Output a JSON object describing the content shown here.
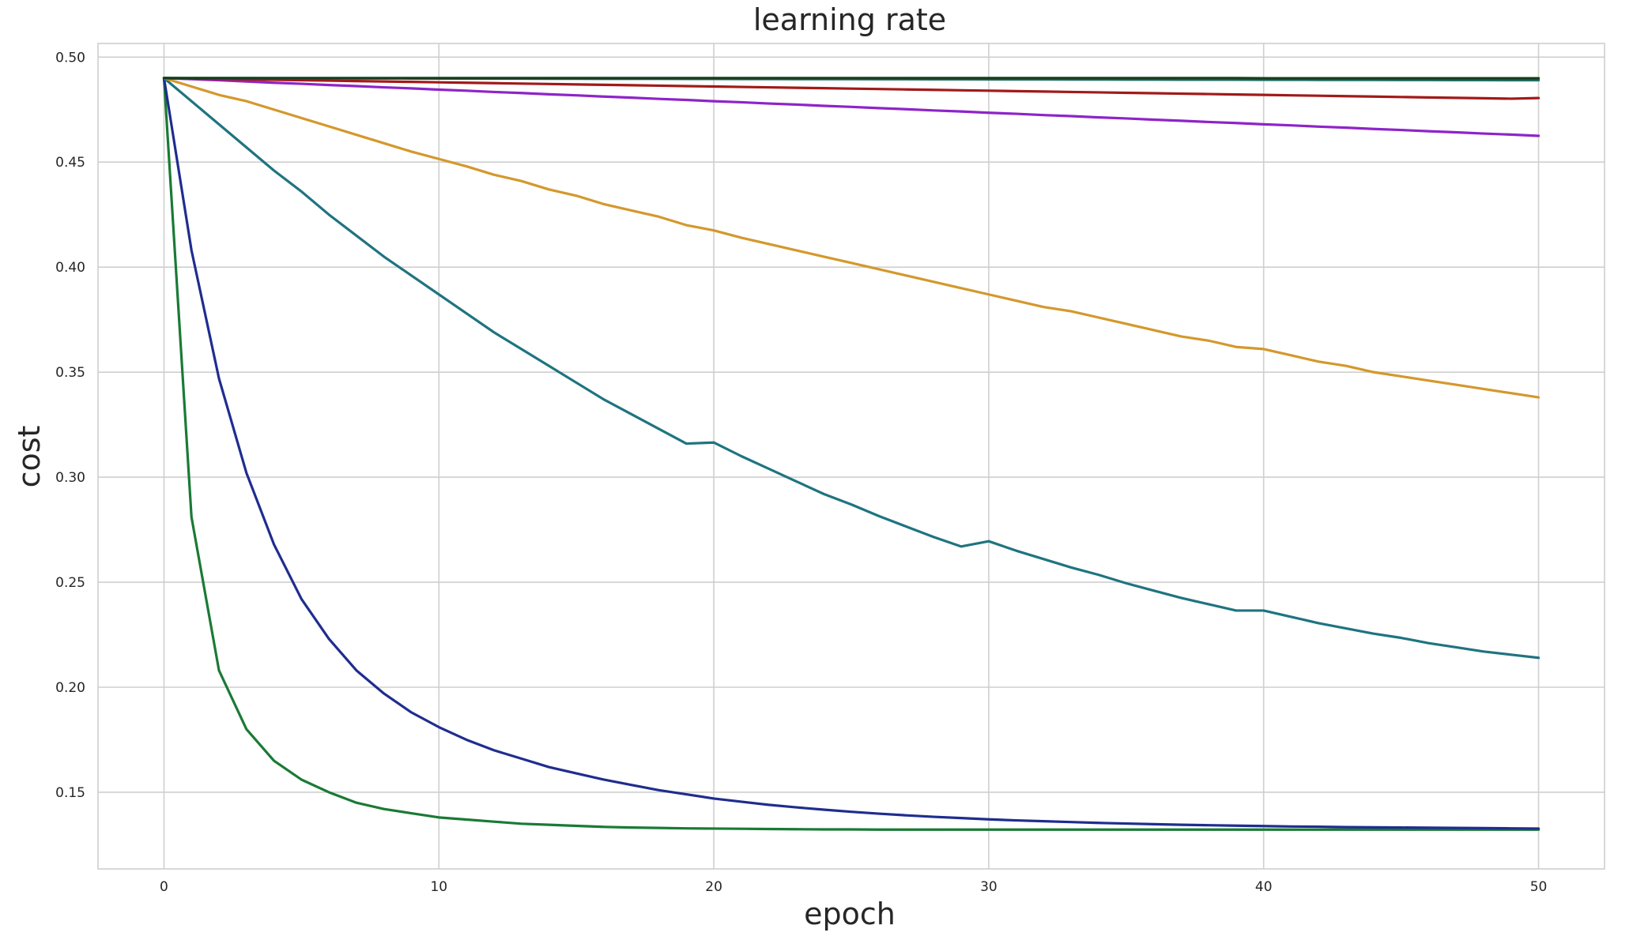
{
  "chart_data": {
    "type": "line",
    "title": "learning rate",
    "xlabel": "epoch",
    "ylabel": "cost",
    "xlim": [
      -2.4,
      52.4
    ],
    "ylim": [
      0.1135,
      0.5065
    ],
    "xticks": [
      0,
      10,
      20,
      30,
      40,
      50
    ],
    "xtick_labels": [
      "0",
      "10",
      "20",
      "30",
      "40",
      "50"
    ],
    "yticks": [
      0.15,
      0.2,
      0.25,
      0.3,
      0.35,
      0.4,
      0.45,
      0.5
    ],
    "ytick_labels": [
      "0.15",
      "0.20",
      "0.25",
      "0.30",
      "0.35",
      "0.40",
      "0.45",
      "0.50"
    ],
    "grid": true,
    "legend": "none",
    "x": [
      0,
      1,
      2,
      3,
      4,
      5,
      6,
      7,
      8,
      9,
      10,
      11,
      12,
      13,
      14,
      15,
      16,
      17,
      18,
      19,
      20,
      21,
      22,
      23,
      24,
      25,
      26,
      27,
      28,
      29,
      30,
      31,
      32,
      33,
      34,
      35,
      36,
      37,
      38,
      39,
      40,
      41,
      42,
      43,
      44,
      45,
      46,
      47,
      48,
      49,
      50
    ],
    "series": [
      {
        "color": "#1a7a35",
        "values": [
          0.49,
          0.281,
          0.208,
          0.18,
          0.165,
          0.156,
          0.15,
          0.145,
          0.142,
          0.14,
          0.138,
          0.137,
          0.136,
          0.135,
          0.1345,
          0.134,
          0.1335,
          0.1332,
          0.133,
          0.1328,
          0.1327,
          0.1326,
          0.1325,
          0.1324,
          0.1323,
          0.1323,
          0.1322,
          0.1322,
          0.1322,
          0.1322,
          0.1322,
          0.1322,
          0.1322,
          0.1322,
          0.1322,
          0.1322,
          0.1322,
          0.1322,
          0.1322,
          0.1322,
          0.1322,
          0.1322,
          0.1322,
          0.1322,
          0.1322,
          0.1322,
          0.1322,
          0.1322,
          0.1322,
          0.1322,
          0.1322
        ]
      },
      {
        "color": "#1f2d8f",
        "values": [
          0.49,
          0.408,
          0.347,
          0.302,
          0.268,
          0.242,
          0.223,
          0.208,
          0.197,
          0.188,
          0.181,
          0.175,
          0.17,
          0.166,
          0.162,
          0.159,
          0.156,
          0.1535,
          0.151,
          0.149,
          0.147,
          0.1455,
          0.144,
          0.1428,
          0.1417,
          0.1407,
          0.1398,
          0.139,
          0.1383,
          0.1377,
          0.1371,
          0.1366,
          0.1362,
          0.1358,
          0.1354,
          0.1351,
          0.1348,
          0.1345,
          0.1343,
          0.1341,
          0.1339,
          0.1337,
          0.1336,
          0.1334,
          0.1333,
          0.1332,
          0.1331,
          0.133,
          0.1329,
          0.1328,
          0.1327
        ]
      },
      {
        "color": "#1f7480",
        "values": [
          0.49,
          0.479,
          0.468,
          0.457,
          0.446,
          0.436,
          0.425,
          0.415,
          0.405,
          0.396,
          0.387,
          0.378,
          0.369,
          0.361,
          0.353,
          0.345,
          0.337,
          0.33,
          0.323,
          0.316,
          0.3165,
          0.31,
          0.304,
          0.298,
          0.292,
          0.287,
          0.2815,
          0.2765,
          0.2715,
          0.267,
          0.2695,
          0.265,
          0.261,
          0.257,
          0.2535,
          0.2495,
          0.246,
          0.2425,
          0.2395,
          0.2365,
          0.2365,
          0.2335,
          0.2305,
          0.228,
          0.2255,
          0.2235,
          0.221,
          0.219,
          0.217,
          0.2155,
          0.214
        ]
      },
      {
        "color": "#d4982c",
        "values": [
          0.49,
          0.486,
          0.482,
          0.479,
          0.475,
          0.471,
          0.467,
          0.463,
          0.459,
          0.455,
          0.4515,
          0.448,
          0.444,
          0.441,
          0.437,
          0.434,
          0.43,
          0.427,
          0.424,
          0.42,
          0.4175,
          0.414,
          0.411,
          0.408,
          0.405,
          0.402,
          0.399,
          0.396,
          0.393,
          0.39,
          0.387,
          0.384,
          0.381,
          0.379,
          0.376,
          0.373,
          0.37,
          0.367,
          0.365,
          0.362,
          0.361,
          0.358,
          0.355,
          0.353,
          0.35,
          0.348,
          0.346,
          0.344,
          0.342,
          0.34,
          0.338
        ]
      },
      {
        "color": "#8e24c8",
        "values": [
          0.49,
          0.4895,
          0.489,
          0.4884,
          0.4878,
          0.4873,
          0.4867,
          0.4862,
          0.4856,
          0.4851,
          0.4845,
          0.484,
          0.4834,
          0.4829,
          0.4823,
          0.4818,
          0.4812,
          0.4807,
          0.4801,
          0.4796,
          0.479,
          0.4785,
          0.4779,
          0.4774,
          0.4768,
          0.4763,
          0.4757,
          0.4752,
          0.4746,
          0.4741,
          0.4735,
          0.473,
          0.4724,
          0.4719,
          0.4713,
          0.4708,
          0.4702,
          0.4697,
          0.4691,
          0.4686,
          0.468,
          0.4675,
          0.4669,
          0.4664,
          0.4658,
          0.4653,
          0.4647,
          0.4642,
          0.4636,
          0.4631,
          0.4625
        ]
      },
      {
        "color": "#a11a1a",
        "values": [
          0.49,
          0.4898,
          0.4896,
          0.4894,
          0.4892,
          0.489,
          0.4888,
          0.4886,
          0.4884,
          0.4882,
          0.488,
          0.4878,
          0.4876,
          0.4874,
          0.4872,
          0.487,
          0.4868,
          0.4866,
          0.4864,
          0.4862,
          0.486,
          0.4858,
          0.4856,
          0.4854,
          0.4852,
          0.485,
          0.4848,
          0.4846,
          0.4844,
          0.4842,
          0.484,
          0.4838,
          0.4836,
          0.4834,
          0.4832,
          0.483,
          0.4828,
          0.4826,
          0.4824,
          0.4822,
          0.482,
          0.4818,
          0.4816,
          0.4814,
          0.4812,
          0.481,
          0.4808,
          0.4806,
          0.4804,
          0.4802,
          0.4805
        ]
      },
      {
        "color": "#1f6e63",
        "values": [
          0.49,
          0.48998,
          0.48996,
          0.48994,
          0.48992,
          0.4899,
          0.48988,
          0.48986,
          0.48984,
          0.48982,
          0.4898,
          0.48978,
          0.48976,
          0.48974,
          0.48972,
          0.4897,
          0.48968,
          0.48966,
          0.48964,
          0.48962,
          0.4896,
          0.48958,
          0.48956,
          0.48954,
          0.48952,
          0.4895,
          0.48948,
          0.48946,
          0.48944,
          0.48942,
          0.4894,
          0.48938,
          0.48936,
          0.48934,
          0.48932,
          0.4893,
          0.48928,
          0.48926,
          0.48924,
          0.48922,
          0.4892,
          0.48918,
          0.48916,
          0.48914,
          0.48912,
          0.4891,
          0.48908,
          0.48906,
          0.48904,
          0.48902,
          0.489
        ]
      },
      {
        "color": "#173d1f",
        "values": [
          0.49,
          0.49,
          0.49,
          0.49,
          0.49,
          0.49,
          0.49,
          0.49,
          0.49,
          0.49,
          0.49,
          0.49,
          0.49,
          0.49,
          0.49,
          0.49,
          0.49,
          0.49,
          0.49,
          0.49,
          0.49,
          0.49,
          0.49,
          0.49,
          0.49,
          0.49,
          0.49,
          0.49,
          0.49,
          0.49,
          0.49,
          0.49,
          0.49,
          0.49,
          0.49,
          0.49,
          0.49,
          0.49,
          0.49,
          0.49,
          0.4899,
          0.4899,
          0.4899,
          0.4899,
          0.4899,
          0.4899,
          0.4899,
          0.4899,
          0.4899,
          0.4899,
          0.4899
        ]
      }
    ]
  }
}
